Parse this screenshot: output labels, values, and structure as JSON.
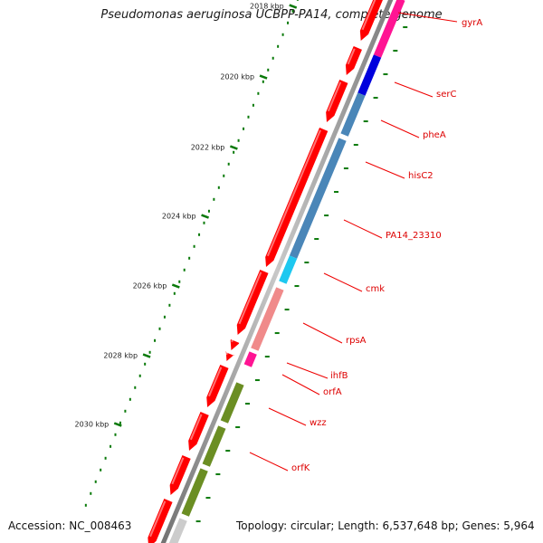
{
  "title": "Pseudomonas aeruginosa UCBPP-PA14, complete genome",
  "accession": "Accession: NC_008463",
  "summary": "Topology: circular; Length: 6,537,648 bp; Genes: 5,964",
  "colors": {
    "backbone": "#8a8a8a",
    "gene_forward": "#ff0000",
    "tick": "#0a7a0a",
    "label": "#dd0000",
    "leader": "#ee0000"
  },
  "scale_ticks": [
    {
      "label": "2018 kbp"
    },
    {
      "label": "2020 kbp"
    },
    {
      "label": "2022 kbp"
    },
    {
      "label": "2024 kbp"
    },
    {
      "label": "2026 kbp"
    },
    {
      "label": "2028 kbp"
    },
    {
      "label": "2030 kbp"
    }
  ],
  "gene_labels": [
    {
      "name": "gyrA",
      "color": "#ff1493"
    },
    {
      "name": "serC",
      "color": "#0000dd"
    },
    {
      "name": "pheA",
      "color": "#4a86b8"
    },
    {
      "name": "hisC2",
      "color": "#4a86b8"
    },
    {
      "name": "PA14_23310",
      "color": "#4a86b8"
    },
    {
      "name": "cmk",
      "color": "#1ec8f0"
    },
    {
      "name": "rpsA",
      "color": "#f08a8a"
    },
    {
      "name": "ihfB",
      "color": "#ff1493"
    },
    {
      "name": "orfA",
      "color": "#ff0000"
    },
    {
      "name": "wzz",
      "color": "#6b8e23"
    },
    {
      "name": "orfK",
      "color": "#6b8e23"
    }
  ]
}
